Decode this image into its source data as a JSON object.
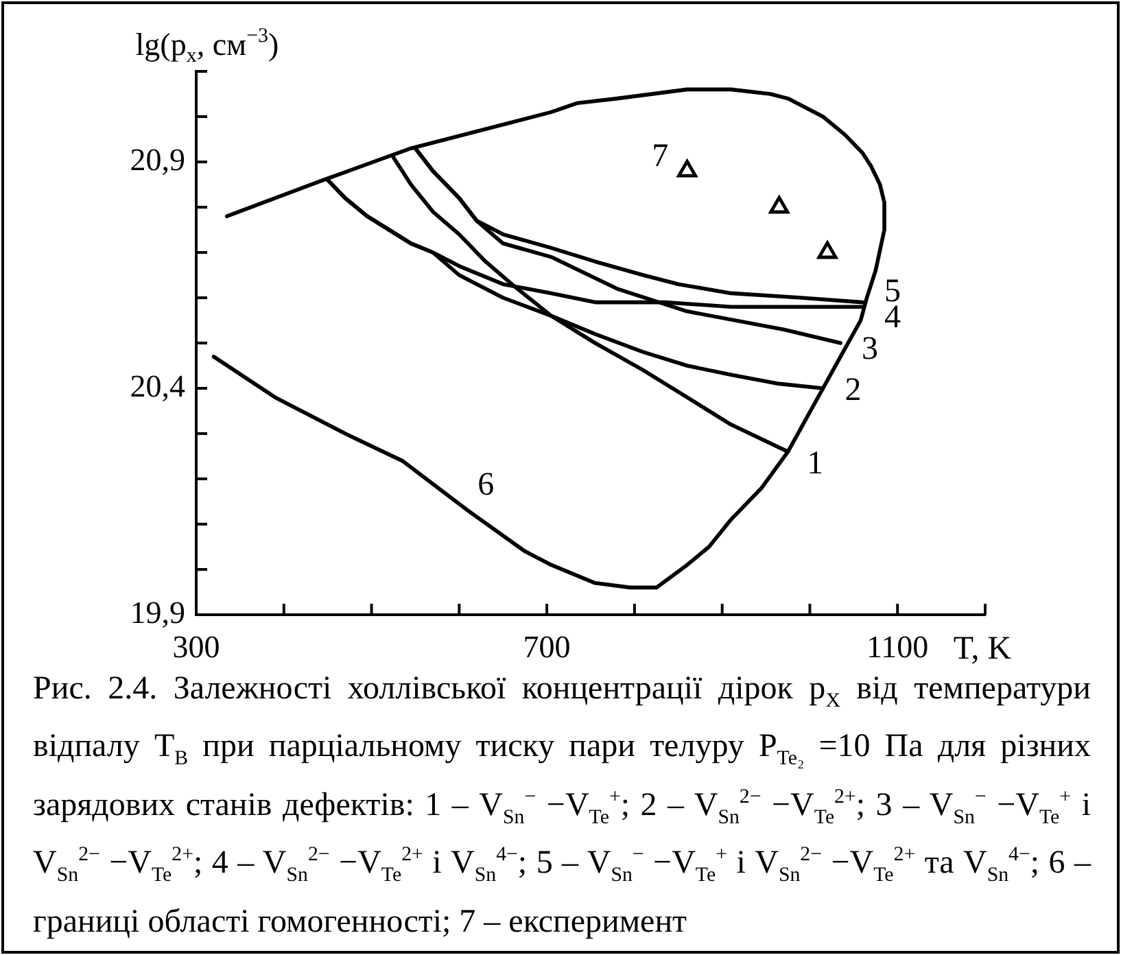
{
  "chart_data": {
    "type": "line",
    "xlabel": "T, K",
    "ylabel": "lg(p$_{x}$, см$^{−3}$)",
    "xlim": [
      300,
      1200
    ],
    "ylim": [
      19.9,
      21.1
    ],
    "xticks": [
      300,
      {
        "value": 400,
        "label": null
      },
      {
        "value": 500,
        "label": null
      },
      {
        "value": 600,
        "label": null
      },
      700,
      {
        "value": 800,
        "label": null
      },
      {
        "value": 900,
        "label": null
      },
      {
        "value": 1000,
        "label": null
      },
      1100,
      {
        "value": 1200,
        "label": null
      }
    ],
    "yticks": [
      {
        "value": 19.9,
        "label": "19,9"
      },
      {
        "value": 20.0,
        "label": null
      },
      {
        "value": 20.1,
        "label": null
      },
      {
        "value": 20.2,
        "label": null
      },
      {
        "value": 20.3,
        "label": null
      },
      {
        "value": 20.4,
        "label": "20,4"
      },
      {
        "value": 20.5,
        "label": null
      },
      {
        "value": 20.6,
        "label": null
      },
      {
        "value": 20.7,
        "label": null
      },
      {
        "value": 20.8,
        "label": null
      },
      {
        "value": 20.9,
        "label": "20,9"
      },
      {
        "value": 21.0,
        "label": null
      },
      {
        "value": 21.1,
        "label": null
      }
    ],
    "series": [
      {
        "color": "#000000",
        "x": [
          525,
          545,
          570,
          600,
          630,
          660,
          705,
          755,
          810,
          860,
          910,
          975
        ],
        "values": [
          20.91,
          20.85,
          20.79,
          20.74,
          20.68,
          20.63,
          20.56,
          20.5,
          20.44,
          20.38,
          20.32,
          20.26
        ]
      },
      {
        "color": "#000000",
        "x": [
          450,
          470,
          495,
          520,
          545,
          570,
          600,
          650,
          705,
          755,
          810,
          860,
          910,
          965,
          1015
        ],
        "values": [
          20.86,
          20.82,
          20.78,
          20.75,
          20.72,
          20.7,
          20.65,
          20.6,
          20.56,
          20.52,
          20.48,
          20.45,
          20.43,
          20.41,
          20.4
        ]
      },
      {
        "color": "#000000",
        "x": [
          550,
          570,
          600,
          620,
          650,
          705,
          780,
          860,
          970,
          1035
        ],
        "values": [
          20.93,
          20.88,
          20.82,
          20.77,
          20.72,
          20.69,
          20.62,
          20.57,
          20.53,
          20.5
        ]
      },
      {
        "color": "#000000",
        "x": [
          450,
          470,
          495,
          520,
          545,
          570,
          600,
          650,
          705,
          755,
          835,
          910,
          990,
          1060
        ],
        "values": [
          20.86,
          20.82,
          20.78,
          20.75,
          20.72,
          20.7,
          20.67,
          20.63,
          20.61,
          20.59,
          20.59,
          20.58,
          20.58,
          20.58
        ]
      },
      {
        "color": "#000000",
        "x": [
          550,
          570,
          600,
          620,
          650,
          705,
          755,
          810,
          850,
          910,
          990,
          1060
        ],
        "values": [
          20.93,
          20.88,
          20.82,
          20.77,
          20.74,
          20.71,
          20.68,
          20.65,
          20.63,
          20.61,
          20.6,
          20.59
        ]
      },
      {
        "color": "#000000",
        "x": [
          335,
          445,
          545,
          705,
          735,
          780,
          860,
          910,
          955,
          975,
          995,
          1015,
          1040,
          1060,
          1070,
          1080,
          1085,
          1085,
          1075,
          1065,
          1058,
          1035,
          1015,
          975,
          945,
          910,
          885,
          860,
          825,
          795,
          755,
          705,
          675,
          610,
          535,
          470,
          390,
          320
        ],
        "values": [
          20.78,
          20.86,
          20.93,
          21.01,
          21.03,
          21.04,
          21.06,
          21.06,
          21.05,
          21.04,
          21.02,
          21.0,
          20.96,
          20.92,
          20.89,
          20.85,
          20.81,
          20.75,
          20.66,
          20.6,
          20.55,
          20.47,
          20.4,
          20.26,
          20.18,
          20.11,
          20.05,
          20.01,
          19.96,
          19.96,
          19.97,
          20.01,
          20.04,
          20.13,
          20.24,
          20.3,
          20.38,
          20.47
        ]
      },
      {
        "type": "scatter",
        "color": "#000000",
        "marker": "triangle",
        "x": [
          860,
          965,
          1020
        ],
        "values": [
          20.88,
          20.8,
          20.7
        ]
      }
    ],
    "annotations": [
      {
        "text": "1",
        "x": 975,
        "y": 20.26
      },
      {
        "text": "2",
        "x": 1015,
        "y": 20.4
      },
      {
        "text": "3",
        "x": 1035,
        "y": 20.5
      },
      {
        "text": "4",
        "x": 1060,
        "y": 20.58
      },
      {
        "text": "5",
        "x": 1060,
        "y": 20.59
      },
      {
        "text": "6",
        "x": 610,
        "y": 20.13
      },
      {
        "text": "7",
        "x": 860,
        "y": 20.88
      },
      "Рис. 2.4. Залежності холлівської концентрації дірок p$_{X}$ від температури відпалу T$_{B}$ при парціальному тиску пари телуру P$_{Te₂}$ =10 Па для різних зарядових станів дефектів: 1 – V$_{Sn}$$^{−}$ −V$_{Te}$$^{+}$; 2 – V$_{Sn}$$^{2−}$ −V$_{Te}$$^{2+}$; 3 – V$_{Sn}$$^{−}$ −V$_{Te}$$^{+}$ і V$_{Sn}$$^{2−}$ −V$_{Te}$$^{2+}$; 4 – V$_{Sn}$$^{2−}$ −V$_{Te}$$^{2+}$ і V$_{Sn}$$^{4−}$; 5 – V$_{Sn}$$^{−}$ −V$_{Te}$$^{+}$ і V$_{Sn}$$^{2−}$ −V$_{Te}$$^{2+}$ та V$_{Sn}$$^{4−}$; 6 – границі області гомогенності; 7 – експеримент"
    ]
  }
}
